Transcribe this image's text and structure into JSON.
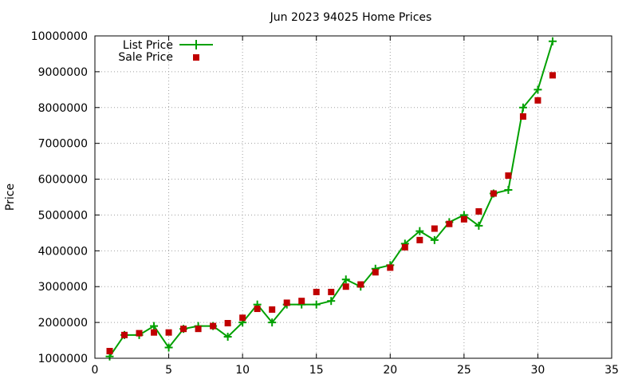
{
  "chart_data": {
    "type": "line",
    "title": "Jun 2023 94025 Home Prices",
    "xlabel": "",
    "ylabel": "Price",
    "xlim": [
      0,
      35
    ],
    "ylim": [
      1000000,
      10000000
    ],
    "x_ticks": [
      0,
      5,
      10,
      15,
      20,
      25,
      30,
      35
    ],
    "y_ticks": [
      1000000,
      2000000,
      3000000,
      4000000,
      5000000,
      6000000,
      7000000,
      8000000,
      9000000,
      10000000
    ],
    "x_tick_labels": [
      "0",
      "5",
      "10",
      "15",
      "20",
      "25",
      "30",
      "35"
    ],
    "y_tick_labels": [
      "1000000",
      "2000000",
      "3000000",
      "4000000",
      "5000000",
      "6000000",
      "7000000",
      "8000000",
      "9000000",
      "10000000"
    ],
    "grid": true,
    "legend_position": "top-left",
    "x": [
      1,
      2,
      3,
      4,
      5,
      6,
      7,
      8,
      9,
      10,
      11,
      12,
      13,
      14,
      15,
      16,
      17,
      18,
      19,
      20,
      21,
      22,
      23,
      24,
      25,
      26,
      27,
      28,
      29,
      30,
      31
    ],
    "series": [
      {
        "name": "List Price",
        "style": "line-plus",
        "color": "#00a000",
        "values": [
          1050000,
          1650000,
          1650000,
          1900000,
          1300000,
          1820000,
          1900000,
          1900000,
          1600000,
          2000000,
          2500000,
          2000000,
          2500000,
          2500000,
          2500000,
          2600000,
          3200000,
          3000000,
          3500000,
          3600000,
          4200000,
          4550000,
          4300000,
          4800000,
          5000000,
          4700000,
          5600000,
          5700000,
          8000000,
          8500000,
          9850000
        ]
      },
      {
        "name": "Sale Price",
        "style": "square-points",
        "color": "#c00000",
        "values": [
          1200000,
          1650000,
          1700000,
          1720000,
          1720000,
          1820000,
          1820000,
          1900000,
          1980000,
          2130000,
          2380000,
          2360000,
          2550000,
          2600000,
          2850000,
          2850000,
          3000000,
          3060000,
          3400000,
          3530000,
          4100000,
          4300000,
          4620000,
          4750000,
          4880000,
          5100000,
          5600000,
          6100000,
          7750000,
          8200000,
          8900000
        ]
      }
    ]
  }
}
